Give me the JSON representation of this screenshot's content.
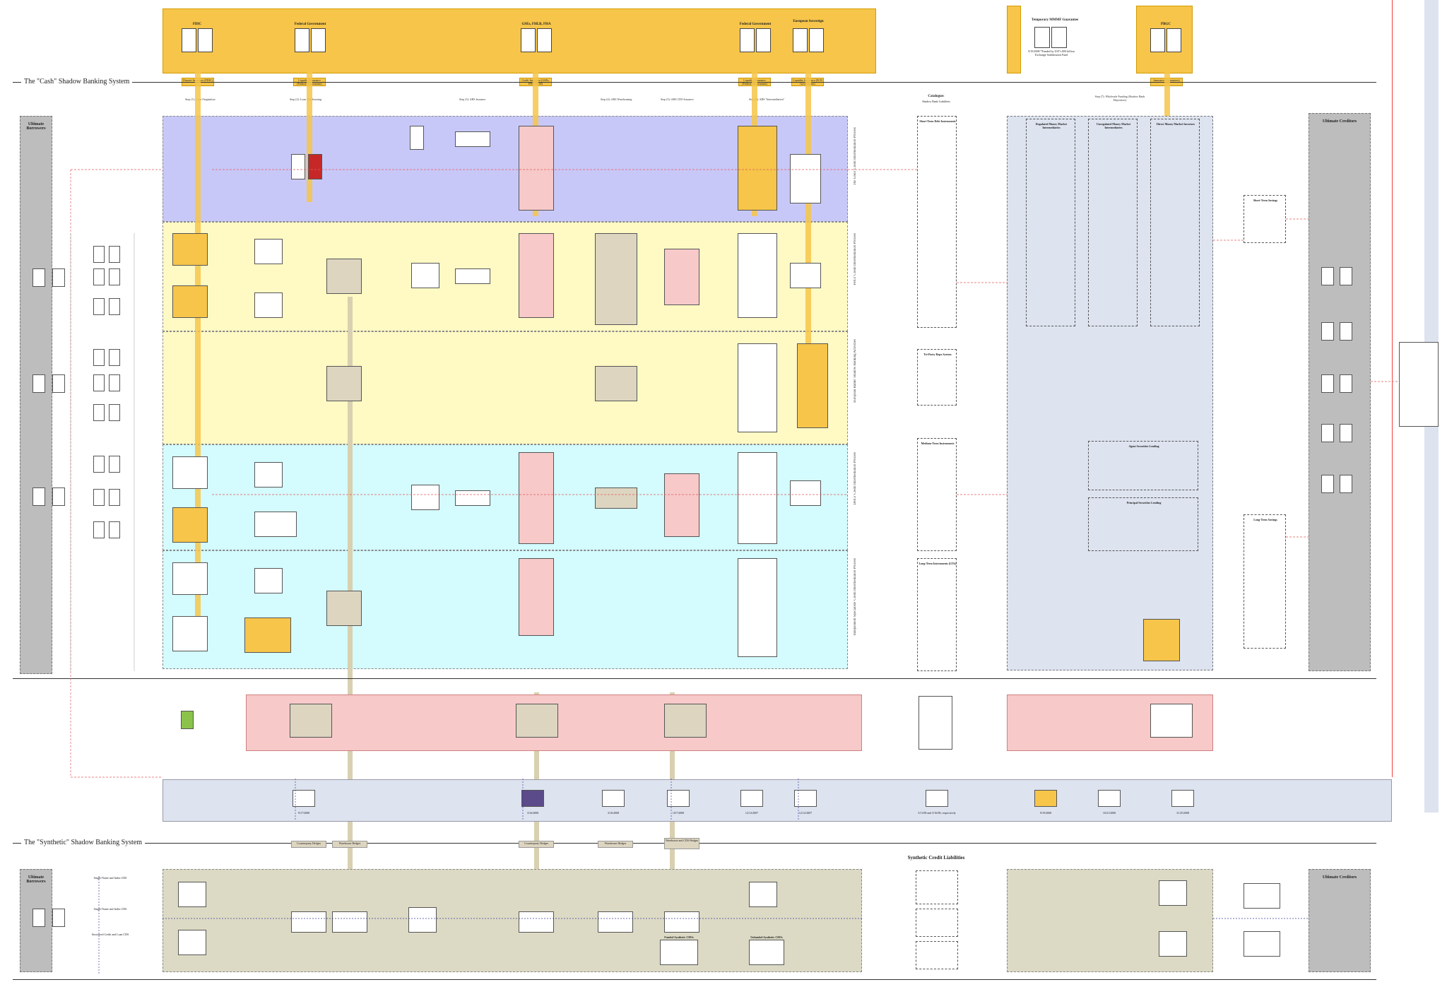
{
  "systems": {
    "cash": "The \"Cash\" Shadow Banking System",
    "synthetic": "The \"Synthetic\" Shadow Banking System"
  },
  "columns": {
    "borrowers_top": "Ultimate Borrowers",
    "creditors_top": "Ultimate Creditors",
    "borrowers_bottom": "Ultimate Borrowers",
    "creditors_bottom": "Ultimate Creditors",
    "synthetic_liabilities": "Synthetic Credit Liabilities"
  },
  "public_enhancement": {
    "nodes": [
      {
        "title": "FDIC",
        "left": "Deposit Insurance",
        "right": "Deposits"
      },
      {
        "title": "Federal Government",
        "left": "Tax Capacity",
        "right": "Implicit Guarantee"
      },
      {
        "title": "GSEs, FHLB, FHA",
        "left": "Tax Capacity",
        "right": "Implicit Guarantee"
      },
      {
        "title": "Federal Government",
        "left": "Tax Capacity",
        "right": "Implicit Guarantee"
      },
      {
        "title": "European Sovereign",
        "left": "Tax Capacity",
        "right": "Implicit Guarantee"
      },
      {
        "title": "Temporary MMMF Guarantee",
        "left": "Tax Capacity",
        "right": "MMMF Insurance"
      },
      {
        "title": "PBGC",
        "left": "Pension Insurance",
        "right": "Implicit Guarantee"
      }
    ],
    "pills": [
      "Deposit Insurance (FDIC)",
      "Liquidity Insurance (Federal Government)",
      "Credit Insurance (GSEs, FHA, HUD)",
      "Liquidity Insurance (Federal Government)",
      "Liquidity Insurance (ECB Government)",
      "Insurance (Guarantees)"
    ],
    "temporary_note": "9/19/2008 *Funded by UST's $50 billion Exchange Stabilization Fund"
  },
  "steps": [
    {
      "label": "Step (1): Loan Origination"
    },
    {
      "label": "Step (2): Loan Warehousing"
    },
    {
      "label": "Step (3): ABS Issuance"
    },
    {
      "label": "Step (4): ABS Warehousing"
    },
    {
      "label": "Step (5): ABS CDO Issuance"
    },
    {
      "label": "Step (6): ABS \"Intermediation\""
    },
    {
      "label": "Step (7): Wholesale Funding (Shadow Bank Depositors)"
    }
  ],
  "bands": [
    {
      "label": "The GSEs' Credit Intermediation Process",
      "sub": "The Government-Sponsored Shadow Banking System"
    },
    {
      "label": "FHCs' Credit Intermediation Process",
      "sub": "The \"Internal\" Shadow Banking System"
    },
    {
      "label": "European Banks' Shadow Banking Activities",
      "sub": "The \"External\" Shadow Banking System"
    },
    {
      "label": "DHCs' Credit Intermediation Process",
      "sub": "The \"External\" Shadow Banking System"
    },
    {
      "label": "Independent Specialists' Credit Intermediation Process",
      "sub": "The \"External\" Shadow Banking System"
    }
  ],
  "catalogue": {
    "title": "Catalogue:",
    "subtitle": "Shadow Bank Liabilities",
    "items": [
      "Short-Term Debt Instruments",
      "Tri-Party Repo System",
      "Medium-Term Instruments",
      "Long-Term Instruments (LTIs)"
    ]
  },
  "mmf": {
    "regulated": "Regulated Money Market Intermediaries",
    "unregulated": "Unregulated Money Market Intermediaries",
    "direct": "Direct Money Market Investors",
    "agent_lending": "Agent Securities Lending",
    "principal_lending": "Principal Securities Lending"
  },
  "creditors": {
    "short_term": "Short-Term Savings",
    "long_term": "Long-Term Savings"
  },
  "lender_of_last_resort": {
    "dates": [
      "9/17/2008",
      "3/16/2008",
      "3/16/2008",
      "10/7/2008",
      "12/12/2007",
      "12/12/2007",
      "3/11/08 and 3/16/08, respectively",
      "9/19/2008",
      "10/21/2008",
      "11/25/2008"
    ]
  },
  "synthetic": {
    "hedges": [
      "Counterparty Hedges",
      "Warehouse Hedges",
      "Counterparty Hedges",
      "Warehouse Hedges",
      "Warehouse and CDS Hedges"
    ],
    "bottom_nodes": [
      "Single-Name and Index CDS",
      "Single-Name and Index CDS",
      "Structured Credit and Loan CDS",
      "Funded Synthetic CDOs",
      "Unfunded Synthetic CDOs"
    ]
  },
  "colors": {
    "public_band": "#f6c54a",
    "gse_band": "#c8c8f8",
    "fhc_band": "#fff9c4",
    "dhc_band": "#d4fbfd",
    "private_band": "#f7c9c9",
    "lolr_band": "#dde3ef",
    "synthetic_band": "#dcdac4",
    "borrowers": "#bdbdbd",
    "mmf_band": "#dde3ef"
  }
}
